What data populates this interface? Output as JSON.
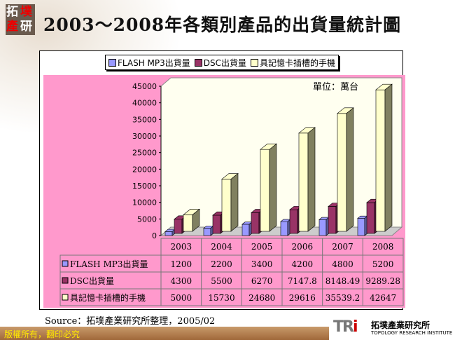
{
  "logo": {
    "chars": [
      "拓",
      "墣",
      "產",
      "研"
    ]
  },
  "title": "2003～2008年各類別產品的出貨量統計圖",
  "unit_note": "單位：萬台",
  "source": "Source：拓墣產業研究所整理，2005/02",
  "footer": "版權所有，翻印必究",
  "brand": {
    "mark": "TRi",
    "name_cn": "拓墣產業研究所",
    "name_en": "TOPOLOGY RESEARCH INSTITUTE"
  },
  "chart_data": {
    "type": "bar",
    "categories": [
      "2003",
      "2004",
      "2005",
      "2006",
      "2007",
      "2008"
    ],
    "series": [
      {
        "name": "FLASH MP3出貨量",
        "color": "#9999ff",
        "values": [
          1200,
          2200,
          3400,
          4200,
          4800,
          5200
        ]
      },
      {
        "name": "DSC出貨量",
        "color": "#993366",
        "values": [
          4300,
          5500,
          6270,
          7147.8,
          8148.49,
          9289.28
        ]
      },
      {
        "name": "具記憶卡插槽的手機",
        "color": "#ffffcc",
        "values": [
          5000,
          15730,
          24680,
          29616,
          35539.2,
          42647
        ]
      }
    ],
    "table_values": [
      [
        "1200",
        "2200",
        "3400",
        "4200",
        "4800",
        "5200"
      ],
      [
        "4300",
        "5500",
        "6270",
        "7147.8",
        "8148.49",
        "9289.28"
      ],
      [
        "5000",
        "15730",
        "24680",
        "29616",
        "35539.2",
        "42647"
      ]
    ],
    "ylim": [
      0,
      45000
    ],
    "yticks": [
      "0",
      "5000",
      "10000",
      "15000",
      "20000",
      "25000",
      "30000",
      "35000",
      "40000",
      "45000"
    ],
    "legend": "top",
    "colors": {
      "background": "#ff99cc",
      "wall": "#fffff0",
      "side": "#808060"
    }
  }
}
